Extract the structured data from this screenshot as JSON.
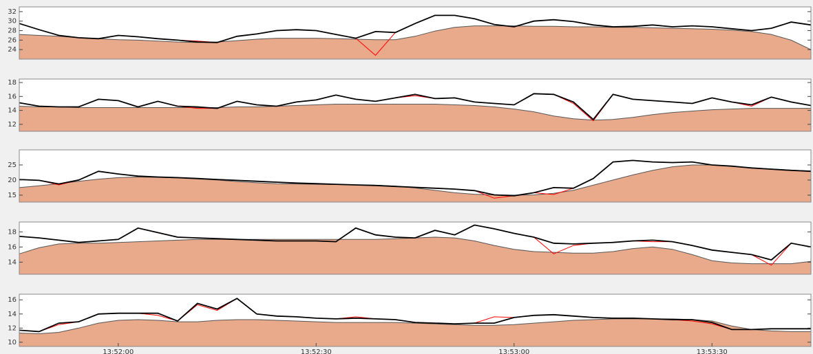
{
  "chart_data": [
    {
      "type": "area",
      "xlim": [
        "13:51:45",
        "13:53:45"
      ],
      "ylim": [
        22,
        33
      ],
      "yticks": [
        24,
        26,
        28,
        30,
        32
      ],
      "x": [
        "13:51:45",
        "13:51:48",
        "13:51:51",
        "13:51:54",
        "13:51:57",
        "13:52:00",
        "13:52:03",
        "13:52:06",
        "13:52:09",
        "13:52:12",
        "13:52:15",
        "13:52:18",
        "13:52:21",
        "13:52:24",
        "13:52:27",
        "13:52:30",
        "13:52:33",
        "13:52:36",
        "13:52:39",
        "13:52:42",
        "13:52:45",
        "13:52:48",
        "13:52:51",
        "13:52:54",
        "13:52:57",
        "13:53:00",
        "13:53:03",
        "13:53:06",
        "13:53:09",
        "13:53:12",
        "13:53:15",
        "13:53:18",
        "13:53:21",
        "13:53:24",
        "13:53:27",
        "13:53:30",
        "13:53:33",
        "13:53:36",
        "13:53:39",
        "13:53:42",
        "13:53:45"
      ],
      "series": [
        {
          "color": "#e9a98b",
          "fill": true,
          "values": [
            27.2,
            27.0,
            26.8,
            26.5,
            26.3,
            26.1,
            26.0,
            25.8,
            25.6,
            25.5,
            25.6,
            25.9,
            26.2,
            26.4,
            26.4,
            26.4,
            26.3,
            26.2,
            26.1,
            26.1,
            26.8,
            27.9,
            28.7,
            29.0,
            29.0,
            29.0,
            28.9,
            28.9,
            28.8,
            28.8,
            28.7,
            28.7,
            28.6,
            28.5,
            28.4,
            28.3,
            28.1,
            27.8,
            27.2,
            26.0,
            24.0
          ]
        },
        {
          "color": "#ff0000",
          "values": [
            29.5,
            28.2,
            27.0,
            26.5,
            26.3,
            27.0,
            26.7,
            26.3,
            26.0,
            25.8,
            25.5,
            26.8,
            27.3,
            28.0,
            28.2,
            28.0,
            27.2,
            26.4,
            22.8,
            27.6,
            29.5,
            31.2,
            31.2,
            30.5,
            29.3,
            28.8,
            30.0,
            30.3,
            29.9,
            29.2,
            28.8,
            28.9,
            29.2,
            28.8,
            29.0,
            28.8,
            28.4,
            28.0,
            28.5,
            29.8,
            29.2
          ]
        },
        {
          "color": "#000000",
          "values": [
            29.5,
            28.2,
            27.0,
            26.5,
            26.3,
            27.0,
            26.7,
            26.3,
            26.0,
            25.6,
            25.5,
            26.8,
            27.3,
            28.0,
            28.2,
            28.0,
            27.2,
            26.4,
            27.8,
            27.6,
            29.5,
            31.2,
            31.2,
            30.5,
            29.3,
            28.8,
            30.0,
            30.3,
            29.9,
            29.2,
            28.8,
            28.9,
            29.2,
            28.8,
            29.0,
            28.8,
            28.4,
            28.0,
            28.5,
            29.8,
            29.2
          ]
        }
      ]
    },
    {
      "type": "area",
      "xlim": [
        "13:51:45",
        "13:53:45"
      ],
      "ylim": [
        11,
        18.5
      ],
      "yticks": [
        12,
        14,
        16,
        18
      ],
      "x": [
        "13:51:45",
        "13:51:48",
        "13:51:51",
        "13:51:54",
        "13:51:57",
        "13:52:00",
        "13:52:03",
        "13:52:06",
        "13:52:09",
        "13:52:12",
        "13:52:15",
        "13:52:18",
        "13:52:21",
        "13:52:24",
        "13:52:27",
        "13:52:30",
        "13:52:33",
        "13:52:36",
        "13:52:39",
        "13:52:42",
        "13:52:45",
        "13:52:48",
        "13:52:51",
        "13:52:54",
        "13:52:57",
        "13:53:00",
        "13:53:03",
        "13:53:06",
        "13:53:09",
        "13:53:12",
        "13:53:15",
        "13:53:18",
        "13:53:21",
        "13:53:24",
        "13:53:27",
        "13:53:30",
        "13:53:33",
        "13:53:36",
        "13:53:39",
        "13:53:42",
        "13:53:45"
      ],
      "series": [
        {
          "color": "#e9a98b",
          "fill": true,
          "values": [
            14.6,
            14.5,
            14.5,
            14.4,
            14.4,
            14.4,
            14.4,
            14.4,
            14.4,
            14.4,
            14.4,
            14.5,
            14.5,
            14.6,
            14.7,
            14.8,
            14.9,
            14.9,
            14.9,
            14.9,
            14.9,
            14.9,
            14.8,
            14.7,
            14.5,
            14.2,
            13.8,
            13.2,
            12.8,
            12.6,
            12.7,
            13.0,
            13.4,
            13.7,
            13.9,
            14.1,
            14.2,
            14.3,
            14.3,
            14.3,
            14.3
          ]
        },
        {
          "color": "#ff0000",
          "values": [
            15.1,
            14.6,
            14.5,
            14.5,
            15.6,
            15.4,
            14.5,
            15.3,
            14.6,
            14.3,
            14.3,
            15.3,
            14.8,
            14.6,
            15.2,
            15.5,
            16.2,
            15.6,
            15.3,
            15.8,
            16.1,
            15.7,
            15.8,
            15.2,
            15.0,
            14.8,
            16.4,
            16.3,
            15.0,
            12.5,
            16.3,
            15.6,
            15.4,
            15.2,
            15.0,
            15.8,
            15.2,
            14.6,
            15.9,
            15.2,
            14.7
          ]
        },
        {
          "color": "#000000",
          "values": [
            15.1,
            14.6,
            14.5,
            14.5,
            15.6,
            15.4,
            14.5,
            15.3,
            14.6,
            14.5,
            14.3,
            15.3,
            14.8,
            14.6,
            15.2,
            15.5,
            16.2,
            15.6,
            15.3,
            15.8,
            16.3,
            15.7,
            15.8,
            15.2,
            15.0,
            14.8,
            16.4,
            16.3,
            15.2,
            12.7,
            16.3,
            15.6,
            15.4,
            15.2,
            15.0,
            15.8,
            15.2,
            14.8,
            15.9,
            15.2,
            14.7
          ]
        }
      ]
    },
    {
      "type": "area",
      "xlim": [
        "13:51:45",
        "13:53:45"
      ],
      "ylim": [
        12.7,
        30
      ],
      "yticks": [
        15,
        20,
        25
      ],
      "x": [
        "13:51:45",
        "13:51:48",
        "13:51:51",
        "13:51:54",
        "13:51:57",
        "13:52:00",
        "13:52:03",
        "13:52:06",
        "13:52:09",
        "13:52:12",
        "13:52:15",
        "13:52:18",
        "13:52:21",
        "13:52:24",
        "13:52:27",
        "13:52:30",
        "13:52:33",
        "13:52:36",
        "13:52:39",
        "13:52:42",
        "13:52:45",
        "13:52:48",
        "13:52:51",
        "13:52:54",
        "13:52:57",
        "13:53:00",
        "13:53:03",
        "13:53:06",
        "13:53:09",
        "13:53:12",
        "13:53:15",
        "13:53:18",
        "13:53:21",
        "13:53:24",
        "13:53:27",
        "13:53:30",
        "13:53:33",
        "13:53:36",
        "13:53:39",
        "13:53:42",
        "13:53:45"
      ],
      "series": [
        {
          "color": "#e9a98b",
          "fill": true,
          "values": [
            17.5,
            18.1,
            18.8,
            19.6,
            20.3,
            20.8,
            21.0,
            20.9,
            20.7,
            20.4,
            20.0,
            19.5,
            19.1,
            18.8,
            18.7,
            18.6,
            18.5,
            18.4,
            18.3,
            18.0,
            17.4,
            16.6,
            15.8,
            15.3,
            15.1,
            15.0,
            15.1,
            15.6,
            16.6,
            18.3,
            20.0,
            21.7,
            23.2,
            24.4,
            25.0,
            25.0,
            24.6,
            24.1,
            23.7,
            23.3,
            23.0
          ]
        },
        {
          "color": "#ff0000",
          "values": [
            20.2,
            19.9,
            18.4,
            20.0,
            22.9,
            22.0,
            21.3,
            21.0,
            20.8,
            20.5,
            20.2,
            19.9,
            19.6,
            19.3,
            19.0,
            18.8,
            18.6,
            18.4,
            18.2,
            17.9,
            17.6,
            17.3,
            17.0,
            16.5,
            14.0,
            14.8,
            15.8,
            15.2,
            17.3,
            20.5,
            26.0,
            26.5,
            26.0,
            25.8,
            26.0,
            25.0,
            24.6,
            24.0,
            23.6,
            23.2,
            22.9
          ]
        },
        {
          "color": "#000000",
          "values": [
            20.2,
            19.9,
            18.7,
            20.0,
            22.9,
            22.0,
            21.3,
            21.0,
            20.8,
            20.5,
            20.2,
            19.9,
            19.6,
            19.3,
            19.0,
            18.8,
            18.6,
            18.4,
            18.2,
            17.9,
            17.6,
            17.3,
            17.0,
            16.5,
            15.1,
            14.8,
            15.8,
            17.5,
            17.3,
            20.5,
            26.0,
            26.5,
            26.0,
            25.8,
            26.0,
            25.0,
            24.6,
            24.0,
            23.6,
            23.2,
            22.9
          ]
        }
      ]
    },
    {
      "type": "area",
      "xlim": [
        "13:51:45",
        "13:53:45"
      ],
      "ylim": [
        12.4,
        19.3
      ],
      "yticks": [
        14,
        16,
        18
      ],
      "x": [
        "13:51:45",
        "13:51:48",
        "13:51:51",
        "13:51:54",
        "13:51:57",
        "13:52:00",
        "13:52:03",
        "13:52:06",
        "13:52:09",
        "13:52:12",
        "13:52:15",
        "13:52:18",
        "13:52:21",
        "13:52:24",
        "13:52:27",
        "13:52:30",
        "13:52:33",
        "13:52:36",
        "13:52:39",
        "13:52:42",
        "13:52:45",
        "13:52:48",
        "13:52:51",
        "13:52:54",
        "13:52:57",
        "13:53:00",
        "13:53:03",
        "13:53:06",
        "13:53:09",
        "13:53:12",
        "13:53:15",
        "13:53:18",
        "13:53:21",
        "13:53:24",
        "13:53:27",
        "13:53:30",
        "13:53:33",
        "13:53:36",
        "13:53:39",
        "13:53:42",
        "13:53:45"
      ],
      "series": [
        {
          "color": "#e9a98b",
          "fill": true,
          "values": [
            15.1,
            15.9,
            16.4,
            16.5,
            16.5,
            16.6,
            16.7,
            16.8,
            16.9,
            17.0,
            17.0,
            17.0,
            17.0,
            17.0,
            17.0,
            17.0,
            17.0,
            17.0,
            17.0,
            17.1,
            17.2,
            17.3,
            17.2,
            16.8,
            16.2,
            15.7,
            15.4,
            15.3,
            15.2,
            15.2,
            15.4,
            15.8,
            16.0,
            15.7,
            15.0,
            14.2,
            13.9,
            13.8,
            13.8,
            13.8,
            14.1
          ]
        },
        {
          "color": "#ff0000",
          "values": [
            17.4,
            17.2,
            16.9,
            16.6,
            16.8,
            17.0,
            18.5,
            17.9,
            17.3,
            17.2,
            17.1,
            17.0,
            16.9,
            16.8,
            16.8,
            16.8,
            16.7,
            18.5,
            17.6,
            17.3,
            17.2,
            18.2,
            17.6,
            18.9,
            18.4,
            17.8,
            17.3,
            15.1,
            16.2,
            16.5,
            16.6,
            16.8,
            16.7,
            16.7,
            16.2,
            15.6,
            15.3,
            15.0,
            13.6,
            16.5,
            16.0
          ]
        },
        {
          "color": "#000000",
          "values": [
            17.4,
            17.2,
            16.9,
            16.6,
            16.8,
            17.0,
            18.5,
            17.9,
            17.3,
            17.2,
            17.1,
            17.0,
            16.9,
            16.8,
            16.8,
            16.8,
            16.7,
            18.5,
            17.6,
            17.3,
            17.2,
            18.2,
            17.6,
            18.9,
            18.4,
            17.8,
            17.3,
            16.5,
            16.4,
            16.5,
            16.6,
            16.8,
            16.9,
            16.7,
            16.2,
            15.6,
            15.3,
            15.0,
            14.3,
            16.5,
            16.0
          ]
        }
      ]
    },
    {
      "type": "area",
      "xlim": [
        "13:51:45",
        "13:53:45"
      ],
      "ylim": [
        9.4,
        16.8
      ],
      "yticks": [
        10,
        12,
        14,
        16
      ],
      "xticks": [
        "13:52:00",
        "13:52:30",
        "13:53:00",
        "13:53:30"
      ],
      "x": [
        "13:51:45",
        "13:51:48",
        "13:51:51",
        "13:51:54",
        "13:51:57",
        "13:52:00",
        "13:52:03",
        "13:52:06",
        "13:52:09",
        "13:52:12",
        "13:52:15",
        "13:52:18",
        "13:52:21",
        "13:52:24",
        "13:52:27",
        "13:52:30",
        "13:52:33",
        "13:52:36",
        "13:52:39",
        "13:52:42",
        "13:52:45",
        "13:52:48",
        "13:52:51",
        "13:52:54",
        "13:52:57",
        "13:53:00",
        "13:53:03",
        "13:53:06",
        "13:53:09",
        "13:53:12",
        "13:53:15",
        "13:53:18",
        "13:53:21",
        "13:53:24",
        "13:53:27",
        "13:53:30",
        "13:53:33",
        "13:53:36",
        "13:53:39",
        "13:53:42",
        "13:53:45"
      ],
      "series": [
        {
          "color": "#e9a98b",
          "fill": true,
          "values": [
            11.3,
            11.2,
            11.4,
            12.0,
            12.7,
            13.1,
            13.2,
            13.1,
            12.9,
            12.9,
            13.1,
            13.2,
            13.2,
            13.1,
            13.0,
            12.9,
            12.8,
            12.8,
            12.8,
            12.8,
            12.7,
            12.6,
            12.5,
            12.4,
            12.4,
            12.5,
            12.7,
            12.9,
            13.1,
            13.2,
            13.3,
            13.3,
            13.3,
            13.3,
            13.2,
            13.0,
            12.3,
            11.8,
            11.6,
            11.5,
            11.5
          ]
        },
        {
          "color": "#ff0000",
          "values": [
            11.7,
            11.5,
            12.5,
            12.9,
            14.0,
            14.1,
            14.1,
            13.8,
            13.0,
            15.3,
            14.5,
            16.2,
            14.0,
            13.7,
            13.6,
            13.4,
            13.3,
            13.6,
            13.3,
            13.2,
            12.8,
            12.7,
            12.6,
            12.7,
            13.6,
            13.5,
            13.8,
            13.9,
            13.7,
            13.5,
            13.4,
            13.4,
            13.3,
            13.2,
            13.0,
            12.6,
            11.8,
            11.8,
            11.9,
            11.9,
            11.9
          ]
        },
        {
          "color": "#000000",
          "values": [
            11.7,
            11.5,
            12.7,
            12.9,
            14.0,
            14.1,
            14.1,
            14.1,
            13.0,
            15.5,
            14.7,
            16.2,
            14.0,
            13.7,
            13.6,
            13.4,
            13.3,
            13.4,
            13.3,
            13.2,
            12.8,
            12.7,
            12.6,
            12.7,
            12.7,
            13.5,
            13.8,
            13.9,
            13.7,
            13.5,
            13.4,
            13.4,
            13.3,
            13.2,
            13.2,
            12.8,
            11.8,
            11.8,
            11.9,
            11.9,
            11.9
          ]
        }
      ]
    }
  ]
}
